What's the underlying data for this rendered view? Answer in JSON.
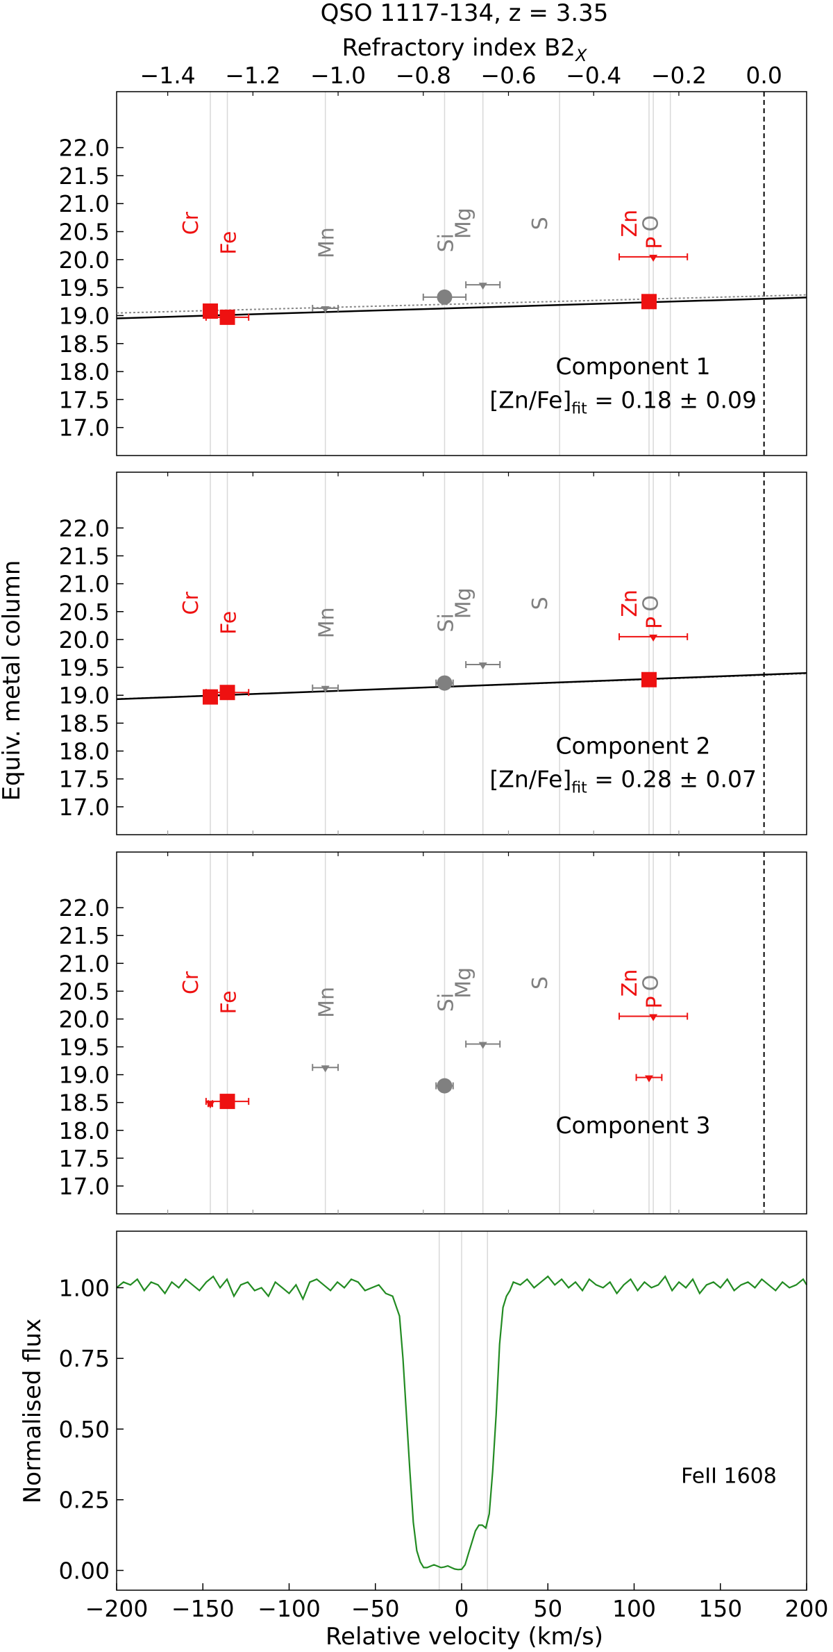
{
  "title": "QSO 1117-134, z = 3.35",
  "top_axis_label": "Refractory index B2",
  "top_axis_label_sub": "X",
  "top_ticks": [
    -1.4,
    -1.2,
    -1.0,
    -0.8,
    -0.6,
    -0.4,
    -0.2,
    0.0
  ],
  "top_tick_labels": [
    "−1.4",
    "−1.2",
    "−1.0",
    "−0.8",
    "−0.6",
    "−0.4",
    "−0.2",
    "0.0"
  ],
  "top_xlim": [
    -1.52,
    0.1
  ],
  "ylabel_top": "Equiv. metal column",
  "ylim_top": [
    16.5,
    23.0
  ],
  "y_ticks_top": [
    17.0,
    17.5,
    18.0,
    18.5,
    19.0,
    19.5,
    20.0,
    20.5,
    21.0,
    21.5,
    22.0
  ],
  "y_tick_labels_top": [
    "17.0",
    "17.5",
    "18.0",
    "18.5",
    "19.0",
    "19.5",
    "20.0",
    "20.5",
    "21.0",
    "21.5",
    "22.0"
  ],
  "colors": {
    "depleted": "#ee1111",
    "reference": "#808080",
    "fit": "#000000",
    "flux": "#228b22",
    "guide": "#d8d8d8"
  },
  "elements": [
    {
      "name": "Cr",
      "x": -1.3,
      "color": "red",
      "row": 1
    },
    {
      "name": "Fe",
      "x": -1.26,
      "color": "red",
      "row": 0
    },
    {
      "name": "Mn",
      "x": -1.03,
      "color": "gray",
      "row": 0
    },
    {
      "name": "Si",
      "x": -0.75,
      "color": "gray",
      "row": 0
    },
    {
      "name": "Mg",
      "x": -0.66,
      "color": "gray",
      "row": 1
    },
    {
      "name": "S",
      "x": -0.48,
      "color": "gray",
      "row": 1
    },
    {
      "name": "Zn",
      "x": -0.27,
      "color": "red",
      "row": 1
    },
    {
      "name": "P",
      "x": -0.26,
      "color": "red",
      "row": 0
    },
    {
      "name": "O",
      "x": -0.22,
      "color": "gray",
      "row": 1
    }
  ],
  "chart_data": [
    {
      "type": "scatter",
      "panel": "Component 1",
      "annotation": "Component 1",
      "fit_label": "[Zn/Fe]",
      "fit_label_sub": "fit",
      "fit_value": " = 0.18 ± 0.09",
      "fit_line": {
        "intercept": 19.3,
        "slope": 0.23
      },
      "dotted_line": {
        "intercept": 19.35,
        "slope": 0.2
      },
      "points": [
        {
          "element": "Cr",
          "x": -1.3,
          "y": 19.08,
          "marker": "square",
          "color": "red"
        },
        {
          "element": "Fe",
          "x": -1.26,
          "y": 18.97,
          "marker": "square",
          "color": "red",
          "xerr": 0.05
        },
        {
          "element": "Mn",
          "x": -1.03,
          "y": 19.13,
          "marker": "lower-limit",
          "color": "gray",
          "xerr": 0.03
        },
        {
          "element": "Si",
          "x": -0.75,
          "y": 19.33,
          "marker": "circle",
          "color": "gray",
          "xerr": 0.05
        },
        {
          "element": "Mg",
          "x": -0.66,
          "y": 19.55,
          "marker": "lower-limit",
          "color": "gray",
          "xerr": 0.04
        },
        {
          "element": "Zn",
          "x": -0.27,
          "y": 19.25,
          "marker": "square",
          "color": "red"
        },
        {
          "element": "P",
          "x": -0.26,
          "y": 20.05,
          "marker": "lower-limit",
          "color": "red",
          "xerr": 0.08
        }
      ]
    },
    {
      "type": "scatter",
      "panel": "Component 2",
      "annotation": "Component 2",
      "fit_label": "[Zn/Fe]",
      "fit_label_sub": "fit",
      "fit_value": " = 0.28 ± 0.07",
      "fit_line": {
        "intercept": 19.37,
        "slope": 0.29
      },
      "dotted_line": {
        "intercept": 19.36,
        "slope": 0.28
      },
      "points": [
        {
          "element": "Cr",
          "x": -1.3,
          "y": 18.97,
          "marker": "square",
          "color": "red"
        },
        {
          "element": "Fe",
          "x": -1.26,
          "y": 19.05,
          "marker": "square",
          "color": "red",
          "xerr": 0.05
        },
        {
          "element": "Mn",
          "x": -1.03,
          "y": 19.13,
          "marker": "lower-limit",
          "color": "gray",
          "xerr": 0.03
        },
        {
          "element": "Si",
          "x": -0.75,
          "y": 19.22,
          "marker": "circle",
          "color": "gray",
          "xerr": 0.02
        },
        {
          "element": "Mg",
          "x": -0.66,
          "y": 19.55,
          "marker": "lower-limit",
          "color": "gray",
          "xerr": 0.04
        },
        {
          "element": "Zn",
          "x": -0.27,
          "y": 19.28,
          "marker": "square",
          "color": "red"
        },
        {
          "element": "P",
          "x": -0.26,
          "y": 20.05,
          "marker": "lower-limit",
          "color": "red",
          "xerr": 0.08
        }
      ]
    },
    {
      "type": "scatter",
      "panel": "Component 3",
      "annotation": "Component 3",
      "points": [
        {
          "element": "Cr",
          "x": -1.3,
          "y": 18.48,
          "marker": "lower-limit",
          "color": "red",
          "xerr": 0.005
        },
        {
          "element": "Fe",
          "x": -1.26,
          "y": 18.52,
          "marker": "square",
          "color": "red",
          "xerr": 0.05
        },
        {
          "element": "Mn",
          "x": -1.03,
          "y": 19.13,
          "marker": "lower-limit",
          "color": "gray",
          "xerr": 0.03
        },
        {
          "element": "Si",
          "x": -0.75,
          "y": 18.8,
          "marker": "circle",
          "color": "gray",
          "xerr": 0.02
        },
        {
          "element": "Mg",
          "x": -0.66,
          "y": 19.55,
          "marker": "lower-limit",
          "color": "gray",
          "xerr": 0.04
        },
        {
          "element": "Zn",
          "x": -0.27,
          "y": 18.95,
          "marker": "lower-limit",
          "color": "red",
          "xerr": 0.03
        },
        {
          "element": "P",
          "x": -0.26,
          "y": 20.05,
          "marker": "lower-limit",
          "color": "red",
          "xerr": 0.08
        }
      ]
    },
    {
      "type": "line",
      "panel": "spectrum",
      "annotation": "FeII 1608",
      "xlabel": "Relative velocity (km/s)",
      "ylabel": "Normalised flux",
      "xlim": [
        -200,
        200
      ],
      "ylim": [
        -0.07,
        1.2
      ],
      "x_ticks": [
        -200,
        -150,
        -100,
        -50,
        0,
        50,
        100,
        150,
        200
      ],
      "x_tick_labels": [
        "−200",
        "−150",
        "−100",
        "−50",
        "0",
        "50",
        "100",
        "150",
        "200"
      ],
      "y_ticks": [
        0.0,
        0.25,
        0.5,
        0.75,
        1.0
      ],
      "y_tick_labels": [
        "0.00",
        "0.25",
        "0.50",
        "0.75",
        "1.00"
      ],
      "component_velocities": [
        -13,
        0,
        15
      ],
      "series": [
        {
          "x": [
            -200,
            -196,
            -192,
            -188,
            -184,
            -180,
            -176,
            -172,
            -168,
            -164,
            -160,
            -156,
            -152,
            -148,
            -144,
            -140,
            -136,
            -132,
            -128,
            -124,
            -120,
            -116,
            -112,
            -108,
            -104,
            -100,
            -96,
            -92,
            -88,
            -84,
            -80,
            -76,
            -72,
            -68,
            -64,
            -60,
            -56,
            -52,
            -48,
            -44,
            -40,
            -36,
            -34,
            -32,
            -30,
            -28,
            -26,
            -24,
            -22,
            -20,
            -18,
            -16,
            -14,
            -12,
            -10,
            -8,
            -6,
            -4,
            -2,
            0,
            2,
            4,
            6,
            8,
            10,
            12,
            14,
            16,
            18,
            20,
            22,
            24,
            26,
            28,
            30,
            34,
            38,
            42,
            46,
            50,
            54,
            58,
            62,
            66,
            70,
            74,
            78,
            82,
            86,
            90,
            94,
            98,
            102,
            106,
            110,
            114,
            118,
            122,
            126,
            130,
            134,
            138,
            142,
            146,
            150,
            154,
            158,
            162,
            166,
            170,
            174,
            178,
            182,
            186,
            190,
            194,
            198,
            200
          ],
          "y": [
            1.0,
            1.02,
            1.01,
            1.03,
            0.99,
            1.02,
            1.01,
            0.98,
            1.02,
            1.0,
            1.03,
            1.01,
            0.99,
            1.02,
            1.04,
            1.0,
            1.03,
            0.97,
            1.01,
            1.02,
            0.99,
            1.0,
            0.97,
            1.02,
            1.0,
            0.98,
            1.01,
            0.96,
            1.02,
            1.03,
            1.01,
            0.99,
            1.02,
            1.0,
            1.03,
            1.02,
            0.99,
            1.0,
            1.01,
            0.98,
            0.97,
            0.9,
            0.75,
            0.55,
            0.35,
            0.17,
            0.07,
            0.03,
            0.01,
            0.01,
            0.015,
            0.02,
            0.015,
            0.01,
            0.012,
            0.016,
            0.01,
            0.005,
            0.003,
            0.004,
            0.02,
            0.06,
            0.1,
            0.14,
            0.16,
            0.16,
            0.15,
            0.2,
            0.35,
            0.55,
            0.8,
            0.93,
            0.97,
            0.99,
            1.02,
            1.01,
            1.03,
            1.0,
            1.02,
            1.04,
            1.01,
            1.03,
            1.0,
            1.02,
            0.99,
            1.03,
            1.01,
            1.0,
            1.02,
            0.98,
            1.01,
            1.03,
            0.99,
            1.02,
            1.0,
            1.01,
            1.04,
            0.99,
            1.02,
            1.0,
            1.03,
            0.98,
            1.01,
            1.02,
            1.0,
            1.03,
            0.99,
            1.01,
            1.02,
            1.0,
            1.03,
            1.01,
            0.99,
            1.02,
            1.0,
            1.01,
            1.03,
            1.01
          ]
        }
      ]
    }
  ]
}
